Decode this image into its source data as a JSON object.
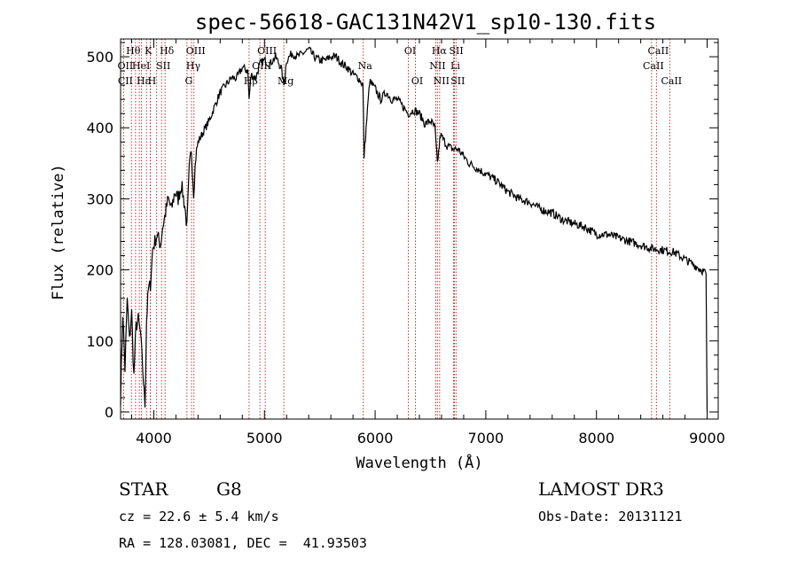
{
  "chart_data": {
    "type": "line",
    "title": "spec-56618-GAC131N42V1_sp10-130.fits",
    "xlabel": "Wavelength (Å)",
    "ylabel": "Flux (relative)",
    "xlim": [
      3700,
      9100
    ],
    "ylim": [
      -10,
      525
    ],
    "x_ticks": [
      4000,
      5000,
      6000,
      7000,
      8000,
      9000
    ],
    "y_ticks": [
      0,
      100,
      200,
      300,
      400,
      500
    ],
    "series": [
      {
        "name": "spectrum",
        "x": [
          3700,
          3720,
          3740,
          3760,
          3780,
          3800,
          3820,
          3840,
          3860,
          3880,
          3900,
          3920,
          3935,
          3950,
          3970,
          3990,
          4010,
          4030,
          4060,
          4080,
          4100,
          4130,
          4160,
          4190,
          4220,
          4250,
          4280,
          4300,
          4320,
          4340,
          4360,
          4380,
          4400,
          4450,
          4500,
          4550,
          4600,
          4650,
          4700,
          4750,
          4800,
          4850,
          4861,
          4880,
          4920,
          4960,
          5000,
          5050,
          5100,
          5150,
          5175,
          5200,
          5250,
          5300,
          5350,
          5400,
          5450,
          5500,
          5550,
          5600,
          5650,
          5700,
          5750,
          5800,
          5850,
          5890,
          5900,
          5950,
          6000,
          6050,
          6100,
          6150,
          6200,
          6250,
          6300,
          6350,
          6400,
          6450,
          6500,
          6540,
          6563,
          6590,
          6650,
          6700,
          6750,
          6800,
          6850,
          6900,
          7000,
          7100,
          7200,
          7300,
          7400,
          7500,
          7600,
          7700,
          7800,
          7900,
          8000,
          8100,
          8200,
          8300,
          8400,
          8500,
          8600,
          8700,
          8800,
          8850,
          8900,
          8950,
          8990,
          9000
        ],
        "y": [
          20,
          140,
          60,
          160,
          100,
          140,
          50,
          120,
          130,
          110,
          60,
          10,
          130,
          170,
          180,
          230,
          240,
          250,
          235,
          260,
          275,
          300,
          285,
          310,
          300,
          320,
          290,
          260,
          340,
          370,
          310,
          360,
          380,
          395,
          410,
          430,
          450,
          460,
          470,
          470,
          485,
          480,
          440,
          475,
          470,
          490,
          495,
          490,
          500,
          485,
          460,
          495,
          505,
          500,
          505,
          510,
          500,
          495,
          495,
          500,
          500,
          490,
          485,
          475,
          470,
          460,
          360,
          465,
          455,
          440,
          450,
          440,
          440,
          430,
          420,
          425,
          420,
          405,
          410,
          400,
          350,
          390,
          375,
          370,
          370,
          360,
          350,
          345,
          335,
          325,
          310,
          300,
          295,
          285,
          280,
          270,
          265,
          260,
          250,
          250,
          245,
          240,
          235,
          230,
          228,
          225,
          215,
          210,
          205,
          200,
          195,
          0
        ]
      }
    ],
    "line_marks": {
      "wavelengths": [
        3727,
        3798,
        3835,
        3869,
        3889,
        3934,
        3968,
        3970,
        4026,
        4070,
        4102,
        4300,
        4341,
        4363,
        4861,
        4959,
        5007,
        5175,
        5893,
        6300,
        6364,
        6548,
        6563,
        6583,
        6708,
        6717,
        6731,
        8498,
        8542,
        8662
      ],
      "labels": [
        {
          "text": "Hθ",
          "x": 3798,
          "row": 1
        },
        {
          "text": "K",
          "x": 3934,
          "row": 1
        },
        {
          "text": "Hδ",
          "x": 4102,
          "row": 1
        },
        {
          "text": "OIII",
          "x": 4363,
          "row": 1
        },
        {
          "text": "OIII",
          "x": 5007,
          "row": 1
        },
        {
          "text": "OI",
          "x": 6300,
          "row": 1
        },
        {
          "text": "Hα",
          "x": 6563,
          "row": 1
        },
        {
          "text": "SII",
          "x": 6717,
          "row": 1
        },
        {
          "text": "CaII",
          "x": 8542,
          "row": 1
        },
        {
          "text": "OII",
          "x": 3727,
          "row": 2
        },
        {
          "text": "HeI",
          "x": 3869,
          "row": 2
        },
        {
          "text": "SII",
          "x": 4070,
          "row": 2
        },
        {
          "text": "Hγ",
          "x": 4341,
          "row": 2
        },
        {
          "text": "OIII",
          "x": 4959,
          "row": 2
        },
        {
          "text": "Na",
          "x": 5893,
          "row": 2
        },
        {
          "text": "NII",
          "x": 6548,
          "row": 2
        },
        {
          "text": "Li",
          "x": 6708,
          "row": 2
        },
        {
          "text": "CaII",
          "x": 8498,
          "row": 2
        },
        {
          "text": "CII",
          "x": 3727,
          "row": 3
        },
        {
          "text": "Hε",
          "x": 3889,
          "row": 3
        },
        {
          "text": "H",
          "x": 3968,
          "row": 3
        },
        {
          "text": "G",
          "x": 4300,
          "row": 3
        },
        {
          "text": "Hβ",
          "x": 4861,
          "row": 3
        },
        {
          "text": "Mg",
          "x": 5175,
          "row": 3
        },
        {
          "text": "OI",
          "x": 6364,
          "row": 3
        },
        {
          "text": "NII",
          "x": 6583,
          "row": 3
        },
        {
          "text": "SII",
          "x": 6731,
          "row": 3
        },
        {
          "text": "CaII",
          "x": 8662,
          "row": 3
        }
      ]
    }
  },
  "info": {
    "object_class": "STAR",
    "subclass": "G8",
    "survey": "LAMOST DR3",
    "cz": "cz = 22.6 ± 5.4 km/s",
    "obs_date": "Obs-Date: 20131121",
    "coords": "RA = 128.03081, DEC =  41.93503"
  }
}
